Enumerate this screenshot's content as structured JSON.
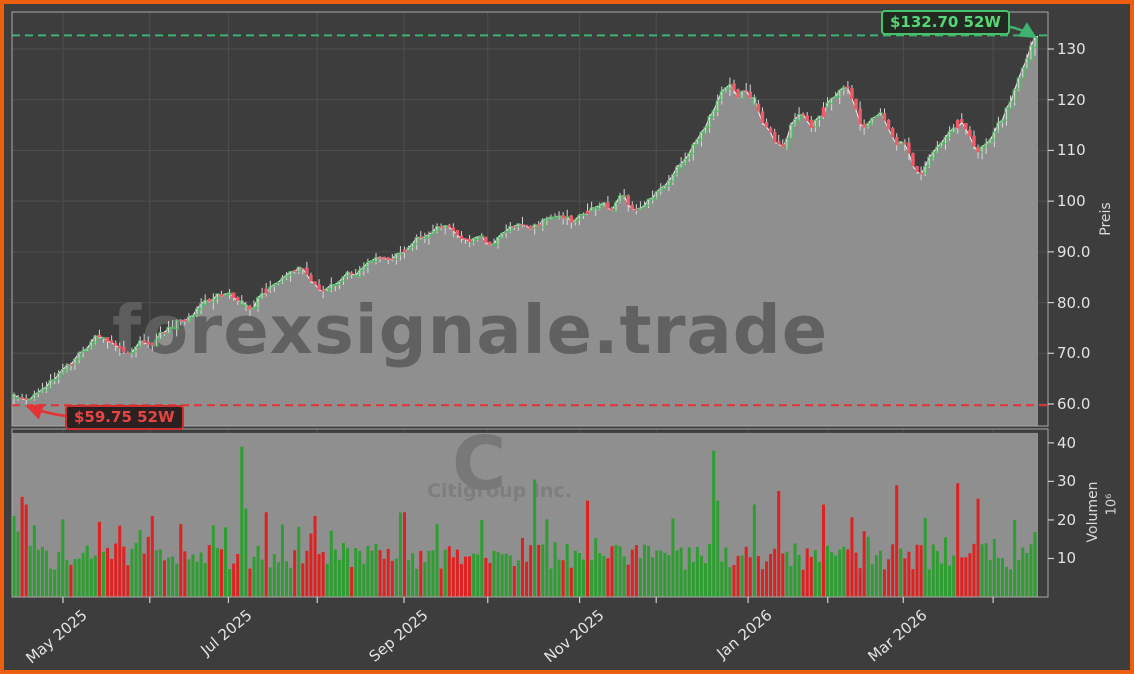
{
  "annotations": {
    "high_label": "$132.70 52W",
    "low_label": "$59.75 52W",
    "high_value": 132.7,
    "low_value": 59.75
  },
  "watermarks": {
    "main": "forexsignale.trade",
    "symbol_letter": "C",
    "symbol_name": "Citigroup Inc."
  },
  "axes": {
    "price_label": "Preis",
    "volume_label": "Volumen",
    "volume_scale": "10⁶"
  },
  "colors": {
    "frame": "#ed5e0f",
    "background": "#3d3d3d",
    "panel_fill": "#8f8f8f",
    "grid": "#4f4f4f",
    "spine": "#a9a9a9",
    "tick_mark": "#cfcfcf",
    "wick": "#d8d8d8",
    "close_line": "#ededed",
    "candle_up": "#57b968",
    "candle_down": "#ee5a68",
    "vol_up": "#2f9e32",
    "vol_down": "#de2121",
    "high_line": "#3eb370",
    "low_line": "#e23434",
    "watermark_main": "#5f5f5f",
    "watermark_symbol": "#747474",
    "tick_text": "#e3e3e3"
  },
  "chart_data": {
    "type": "candlestick",
    "panels": [
      "Preis",
      "Volumen"
    ],
    "high_52w": 132.7,
    "low_52w": 59.75,
    "num_candles": 252,
    "seed": 911,
    "low_candle_index": 3,
    "last_close": 132.45,
    "price_axis": {
      "label": "Preis",
      "range": [
        55.66,
        137.3
      ],
      "ticks": [
        {
          "value": 130,
          "label": "130"
        },
        {
          "value": 120,
          "label": "120"
        },
        {
          "value": 110,
          "label": "110"
        },
        {
          "value": 100,
          "label": "100"
        },
        {
          "value": 90,
          "label": "90.0"
        },
        {
          "value": 80,
          "label": "80.0"
        },
        {
          "value": 70,
          "label": "70.0"
        },
        {
          "value": 60,
          "label": "60.0"
        }
      ]
    },
    "volume_axis": {
      "label": "Volumen",
      "scale": "10⁶",
      "range": [
        0,
        43.6
      ],
      "ticks": [
        {
          "value": 40,
          "label": "40"
        },
        {
          "value": 30,
          "label": "30"
        },
        {
          "value": 20,
          "label": "20"
        },
        {
          "value": 10,
          "label": "10"
        }
      ]
    },
    "x_ticks": [
      {
        "t": 0.048,
        "label": "May 2025"
      },
      {
        "t": 0.133,
        "label": ""
      },
      {
        "t": 0.21,
        "label": "Jul 2025"
      },
      {
        "t": 0.297,
        "label": ""
      },
      {
        "t": 0.382,
        "label": "Sep 2025"
      },
      {
        "t": 0.464,
        "label": ""
      },
      {
        "t": 0.554,
        "label": "Nov 2025"
      },
      {
        "t": 0.629,
        "label": ""
      },
      {
        "t": 0.719,
        "label": "Jan 2026"
      },
      {
        "t": 0.797,
        "label": ""
      },
      {
        "t": 0.871,
        "label": "Mar 2026"
      },
      {
        "t": 0.959,
        "label": ""
      }
    ],
    "close_path_anchors": [
      [
        0.0,
        61.8
      ],
      [
        0.011,
        60.2
      ],
      [
        0.016,
        60.8
      ],
      [
        0.03,
        63.5
      ],
      [
        0.048,
        66.0
      ],
      [
        0.065,
        70.0
      ],
      [
        0.079,
        73.5
      ],
      [
        0.089,
        73.0
      ],
      [
        0.102,
        71.5
      ],
      [
        0.114,
        70.3
      ],
      [
        0.125,
        72.5
      ],
      [
        0.135,
        72.0
      ],
      [
        0.146,
        74.0
      ],
      [
        0.158,
        76.0
      ],
      [
        0.172,
        77.5
      ],
      [
        0.187,
        80.0
      ],
      [
        0.197,
        81.5
      ],
      [
        0.211,
        82.0
      ],
      [
        0.221,
        80.5
      ],
      [
        0.233,
        79.8
      ],
      [
        0.243,
        82.0
      ],
      [
        0.256,
        84.5
      ],
      [
        0.27,
        86.5
      ],
      [
        0.28,
        86.8
      ],
      [
        0.29,
        84.5
      ],
      [
        0.302,
        82.8
      ],
      [
        0.311,
        83.5
      ],
      [
        0.324,
        85.5
      ],
      [
        0.339,
        86.5
      ],
      [
        0.351,
        87.5
      ],
      [
        0.363,
        88.5
      ],
      [
        0.382,
        90.5
      ],
      [
        0.396,
        92.5
      ],
      [
        0.409,
        94.0
      ],
      [
        0.422,
        95.5
      ],
      [
        0.435,
        94.0
      ],
      [
        0.445,
        92.8
      ],
      [
        0.456,
        93.8
      ],
      [
        0.468,
        91.2
      ],
      [
        0.481,
        94.0
      ],
      [
        0.494,
        95.5
      ],
      [
        0.505,
        93.8
      ],
      [
        0.52,
        96.0
      ],
      [
        0.533,
        97.0
      ],
      [
        0.545,
        96.0
      ],
      [
        0.554,
        96.8
      ],
      [
        0.566,
        98.5
      ],
      [
        0.576,
        99.5
      ],
      [
        0.586,
        98.3
      ],
      [
        0.595,
        100.5
      ],
      [
        0.605,
        98.8
      ],
      [
        0.615,
        99.5
      ],
      [
        0.63,
        101.5
      ],
      [
        0.64,
        104.0
      ],
      [
        0.652,
        107.0
      ],
      [
        0.664,
        110.0
      ],
      [
        0.674,
        113.5
      ],
      [
        0.684,
        117.5
      ],
      [
        0.693,
        121.0
      ],
      [
        0.701,
        122.5
      ],
      [
        0.709,
        120.5
      ],
      [
        0.716,
        122.8
      ],
      [
        0.726,
        118.5
      ],
      [
        0.736,
        114.5
      ],
      [
        0.745,
        111.5
      ],
      [
        0.752,
        110.0
      ],
      [
        0.762,
        115.5
      ],
      [
        0.77,
        117.0
      ],
      [
        0.782,
        114.8
      ],
      [
        0.791,
        117.5
      ],
      [
        0.799,
        119.5
      ],
      [
        0.809,
        121.5
      ],
      [
        0.817,
        122.5
      ],
      [
        0.824,
        119.0
      ],
      [
        0.83,
        114.5
      ],
      [
        0.838,
        116.5
      ],
      [
        0.848,
        117.5
      ],
      [
        0.856,
        113.5
      ],
      [
        0.864,
        111.0
      ],
      [
        0.872,
        111.5
      ],
      [
        0.879,
        107.5
      ],
      [
        0.887,
        104.8
      ],
      [
        0.897,
        109.0
      ],
      [
        0.907,
        112.0
      ],
      [
        0.917,
        114.5
      ],
      [
        0.927,
        117.0
      ],
      [
        0.934,
        113.0
      ],
      [
        0.942,
        109.5
      ],
      [
        0.95,
        111.0
      ],
      [
        0.96,
        113.5
      ],
      [
        0.968,
        116.0
      ],
      [
        0.975,
        119.5
      ],
      [
        0.983,
        123.0
      ],
      [
        0.991,
        127.5
      ],
      [
        1.0,
        132.4
      ]
    ],
    "volume_spikes": [
      [
        0,
        21,
        "u"
      ],
      [
        1,
        17,
        "u"
      ],
      [
        2,
        26,
        "d"
      ],
      [
        3,
        24,
        "d"
      ],
      [
        34,
        21,
        "d"
      ],
      [
        56,
        39,
        "u"
      ],
      [
        57,
        23,
        "u"
      ],
      [
        62,
        22,
        "d"
      ],
      [
        96,
        22,
        "d"
      ],
      [
        115,
        20,
        "u"
      ],
      [
        128,
        30.5,
        "u"
      ],
      [
        141,
        25,
        "d"
      ],
      [
        172,
        38,
        "u"
      ],
      [
        173,
        25,
        "u"
      ],
      [
        182,
        24,
        "u"
      ],
      [
        188,
        27.5,
        "d"
      ],
      [
        199,
        24,
        "d"
      ],
      [
        217,
        29,
        "d"
      ],
      [
        224,
        20.5,
        "u"
      ],
      [
        232,
        29.5,
        "d"
      ],
      [
        237,
        25.5,
        "d"
      ],
      [
        246,
        20,
        "u"
      ]
    ]
  }
}
